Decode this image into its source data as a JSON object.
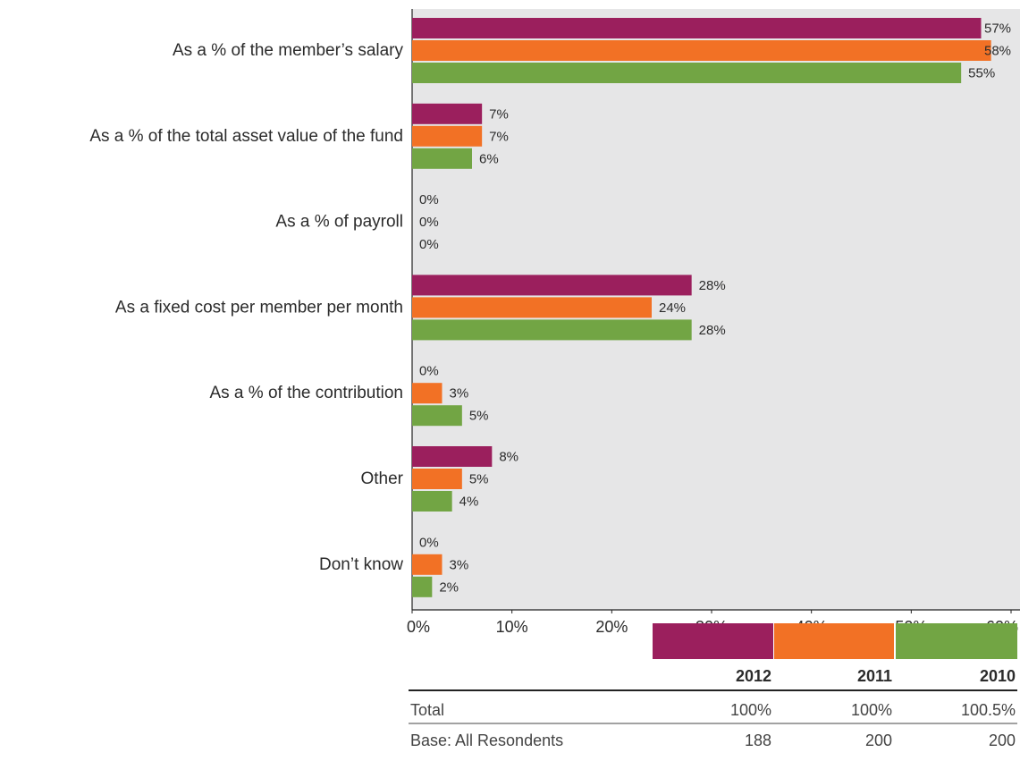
{
  "chart_data": {
    "type": "barh",
    "categories": [
      "As a % of the member’s salary",
      "As a % of the total asset value of the fund",
      "As a % of payroll",
      "As a fixed cost per member per month",
      "As a % of the contribution",
      "Other",
      "Don’t know"
    ],
    "series": [
      {
        "name": "2012",
        "color": "#9b1f5d",
        "values": [
          57,
          7,
          0,
          28,
          0,
          8,
          0
        ],
        "value_labels": [
          "57%",
          "7%",
          "0%",
          "28%",
          "0%",
          "8%",
          "0%"
        ]
      },
      {
        "name": "2011",
        "color": "#f27125",
        "values": [
          58,
          7,
          0,
          24,
          3,
          5,
          3
        ],
        "value_labels": [
          "58%",
          "7%",
          "0%",
          "24%",
          "3%",
          "5%",
          "3%"
        ]
      },
      {
        "name": "2010",
        "color": "#72a544",
        "values": [
          55,
          6,
          0,
          28,
          5,
          4,
          2
        ],
        "value_labels": [
          "55%",
          "6%",
          "0%",
          "28%",
          "5%",
          "4%",
          "2%"
        ]
      }
    ],
    "xlim": [
      0,
      60
    ],
    "xticks": [
      {
        "value": 0,
        "label": "0%"
      },
      {
        "value": 10,
        "label": "10%"
      },
      {
        "value": 20,
        "label": "20%"
      },
      {
        "value": 30,
        "label": "30%"
      },
      {
        "value": 40,
        "label": "40%"
      },
      {
        "value": 50,
        "label": "50%"
      },
      {
        "value": 60,
        "label": "60%"
      }
    ],
    "background": "#e6e6e7",
    "table": {
      "rows": [
        {
          "label": "Total",
          "values": [
            "100%",
            "100%",
            "100.5%"
          ]
        },
        {
          "label": "Base: All Resondents",
          "values": [
            188,
            200,
            200
          ]
        }
      ]
    }
  }
}
